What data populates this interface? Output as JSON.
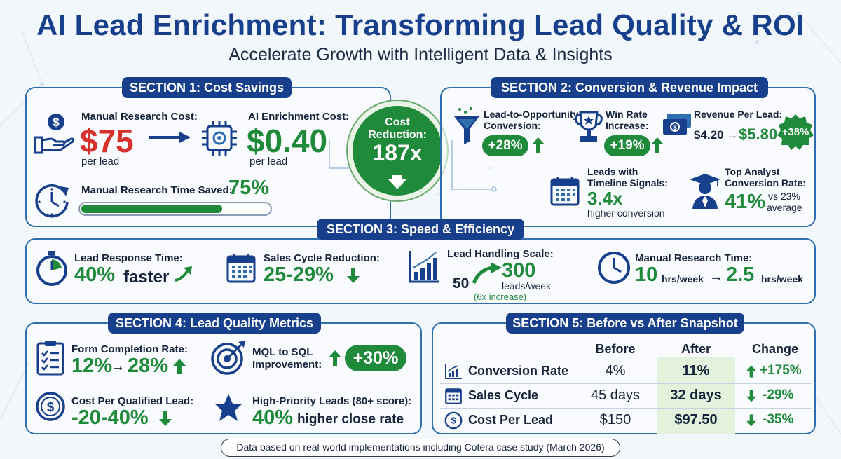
{
  "header": {
    "title": "AI Lead Enrichment: Transforming Lead Quality & ROI",
    "subtitle": "Accelerate Growth with Intelligent Data & Insights"
  },
  "section1": {
    "heading": "SECTION 1: Cost Savings",
    "manual_label": "Manual Research Cost:",
    "manual_value": "$75",
    "manual_unit": "per lead",
    "ai_label": "AI Enrichment Cost:",
    "ai_value": "$0.40",
    "ai_unit": "per lead",
    "time_label": "Manual Research Time Saved:",
    "time_value": "75%",
    "time_progress": 0.75,
    "badge_line1": "Cost",
    "badge_line2": "Reduction:",
    "badge_value": "187x"
  },
  "section2": {
    "heading": "SECTION 2: Conversion & Revenue Impact",
    "lto_label1": "Lead-to-Opportunity",
    "lto_label2": "Conversion:",
    "lto_value": "+28%",
    "win_label1": "Win Rate",
    "win_label2": "Increase:",
    "win_value": "+19%",
    "rpl_label": "Revenue Per Lead:",
    "rpl_from": "$4.20",
    "rpl_arrow": "→",
    "rpl_to": "$5.80",
    "rpl_badge": "+38%",
    "timeline_label1": "Leads with",
    "timeline_label2": "Timeline Signals:",
    "timeline_value": "3.4x",
    "timeline_sub": "higher conversion",
    "analyst_label1": "Top Analyst",
    "analyst_label2": "Conversion Rate:",
    "analyst_value": "41%",
    "analyst_vs1": "vs 23%",
    "analyst_vs2": "average"
  },
  "section3": {
    "heading": "SECTION 3: Speed & Efficiency",
    "response_label": "Lead Response Time:",
    "response_value": "40%",
    "response_word": "faster",
    "cycle_label": "Sales Cycle Reduction:",
    "cycle_value": "25-29%",
    "scale_label": "Lead Handling Scale:",
    "scale_from": "50",
    "scale_to": "300",
    "scale_unit": "leads/week",
    "scale_note": "(6x increase)",
    "manual_label": "Manual Research Time:",
    "manual_from": "10",
    "manual_from_unit": "hrs/week",
    "manual_arrow": "→",
    "manual_to": "2.5",
    "manual_to_unit": "hrs/week"
  },
  "section4": {
    "heading": "SECTION 4: Lead Quality Metrics",
    "form_label": "Form Completion Rate:",
    "form_from": "12%",
    "form_arrow": "→",
    "form_to": "28%",
    "mql_label1": "MQL to SQL",
    "mql_label2": "Improvement:",
    "mql_value": "+30%",
    "cpql_label": "Cost Per Qualified Lead:",
    "cpql_value": "-20-40%",
    "hp_label": "High-Priority Leads (80+ score):",
    "hp_value": "40%",
    "hp_text": "higher close rate"
  },
  "section5": {
    "heading": "SECTION 5: Before vs After Snapshot",
    "columns": [
      "Before",
      "After",
      "Change"
    ],
    "rows": [
      {
        "metric": "Conversion Rate",
        "before": "4%",
        "after": "11%",
        "change": "+175%",
        "icon": "chart-icon"
      },
      {
        "metric": "Sales Cycle",
        "before": "45 days",
        "after": "32 days",
        "change": "-29%",
        "icon": "calendar-icon"
      },
      {
        "metric": "Cost Per Lead",
        "before": "$150",
        "after": "$97.50",
        "change": "-35%",
        "icon": "dollar-coin-icon"
      }
    ]
  },
  "footer": {
    "text": "Data based on real-world implementations including Cotera case study (March 2026)"
  },
  "colors": {
    "navy": "#173f8c",
    "green": "#1e8a3a",
    "red": "#d7312d",
    "border": "#2f6fb0"
  }
}
